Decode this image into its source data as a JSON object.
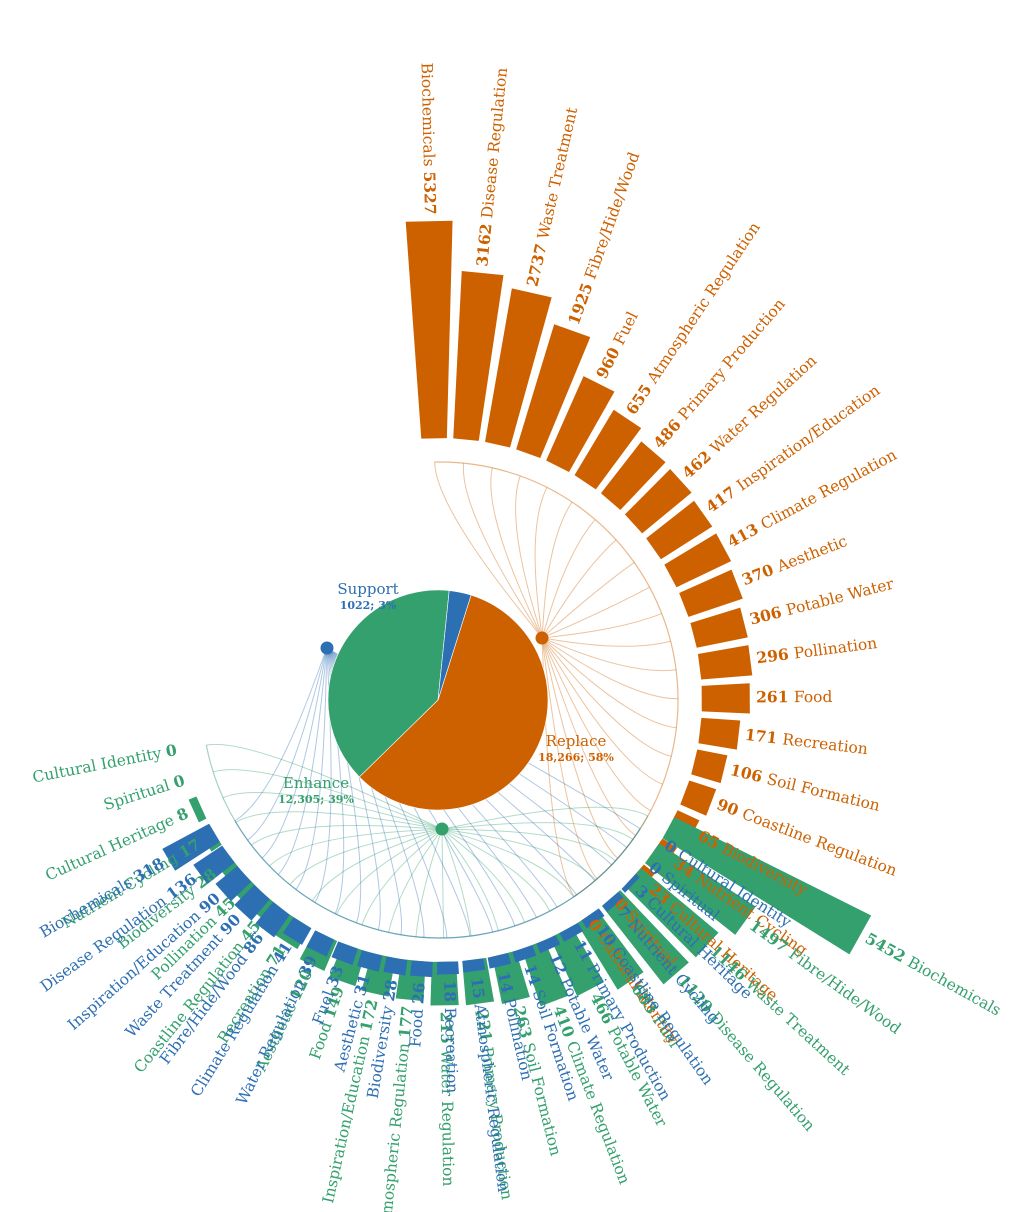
{
  "chart_data": {
    "type": "radial-bar",
    "groups": [
      {
        "name": "Replace",
        "summary": "18,266; 58%",
        "color": "#cd6100",
        "categories": [
          "Biochemicals",
          "Disease Regulation",
          "Waste Treatment",
          "Fibre/Hide/Wood",
          "Fuel",
          "Atmospheric Regulation",
          "Primary Production",
          "Water Regulation",
          "Inspiration/Education",
          "Climate Regulation",
          "Aesthetic",
          "Potable Water",
          "Pollination",
          "Food",
          "Recreation",
          "Soil Formation",
          "Coastline Regulation",
          "Biodiversity",
          "Nutrient Cycling",
          "Cultural Heritage",
          "Spiritual",
          "Cultural Identity"
        ],
        "values": [
          5327,
          3162,
          2737,
          1925,
          960,
          655,
          486,
          462,
          417,
          413,
          370,
          306,
          296,
          261,
          171,
          106,
          90,
          65,
          34,
          23,
          0,
          0
        ]
      },
      {
        "name": "Enhance",
        "summary": "12,305; 39%",
        "color": "#34a06e",
        "categories": [
          "Biochemicals",
          "Fibre/Hide/Wood",
          "Waste Treatment",
          "Disease Regulation",
          "Fuel",
          "Potable Water",
          "Climate Regulation",
          "Soil Formation",
          "Primary Production",
          "Water Regulation",
          "Atmospheric Regulation",
          "Inspiration/Education",
          "Food",
          "Aesthetic",
          "Recreation",
          "Coastline Regulation",
          "Pollination",
          "Biodiversity",
          "Nutrient Cycling",
          "Cultural Heritage",
          "Spiritual",
          "Cultural Identity"
        ],
        "values": [
          5452,
          1497,
          1146,
          1120,
          683,
          466,
          410,
          263,
          221,
          215,
          177,
          172,
          149,
          120,
          71,
          45,
          45,
          28,
          17,
          8,
          0,
          0
        ]
      },
      {
        "name": "Support",
        "summary": "1022; 3%",
        "color": "#2d6fb3",
        "categories": [
          "Biochemicals",
          "Disease Regulation",
          "Inspiration/Education",
          "Waste Treatment",
          "Fibre/Hide/Wood",
          "Climate Regulation",
          "Water Regulation",
          "Fuel",
          "Aesthetic",
          "Biodiversity",
          "Food",
          "Recreation",
          "Atmospheric Regulation",
          "Pollination",
          "Soil Formation",
          "Potable Water",
          "Primary Production",
          "Coastline Regulation",
          "Nutrient Cycling",
          "Cultural Heritage",
          "Spiritual",
          "Cultural Identity"
        ],
        "values": [
          318,
          136,
          90,
          90,
          86,
          41,
          39,
          33,
          31,
          28,
          26,
          18,
          15,
          14,
          14,
          12,
          11,
          10,
          7,
          3,
          0,
          0
        ]
      }
    ],
    "pie": [
      {
        "name": "Replace",
        "value": 18266
      },
      {
        "name": "Enhance",
        "value": 12305
      },
      {
        "name": "Support",
        "value": 1022
      }
    ]
  }
}
